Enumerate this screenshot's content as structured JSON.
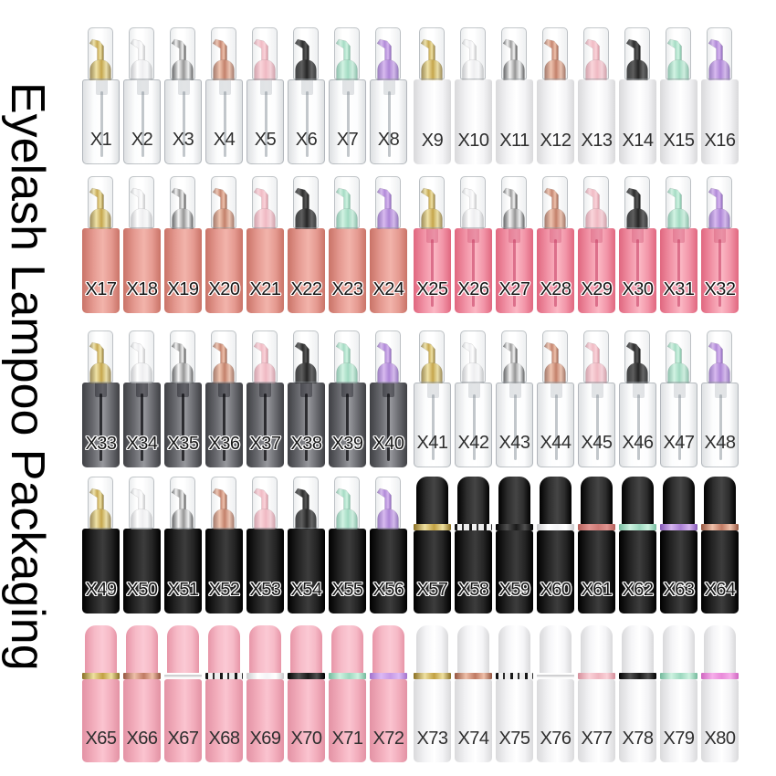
{
  "title": "Eyelash Lampoo Packaging",
  "background": "#ffffff",
  "palette": {
    "colors": {
      "gold": [
        "#8a6f24",
        "#eee0a0",
        "#c2a143"
      ],
      "white": [
        "#c6c6c8",
        "#ffffff",
        "#ededef"
      ],
      "chrome": [
        "#3a3a3a",
        "#f5f5f5",
        "#8f8f8f"
      ],
      "rosegold": [
        "#94553f",
        "#eebfa9",
        "#c07a63"
      ],
      "pink": [
        "#d48e9b",
        "#fad1d8",
        "#efb5bf"
      ],
      "black": [
        "#000000",
        "#4f4f4f",
        "#1a1a1a"
      ],
      "mint": [
        "#74b99c",
        "#cdf2e0",
        "#9dd8bf"
      ],
      "purple": [
        "#8257b5",
        "#d4b3ee",
        "#a97fd4"
      ],
      "coral": [
        "#b45f5a",
        "#e09490",
        "#cd7a76"
      ],
      "whitering": [
        "#c9c9cb",
        "#ffffff",
        "#f4f4f6"
      ],
      "lavender": [
        "#a272cc",
        "#dcb9f4",
        "#c79ae6"
      ],
      "orchid": [
        "#cf66c0",
        "#f6aeea",
        "#e98ada"
      ]
    },
    "caps": {
      "blackcap": [
        "#000000",
        "#2e2e2e",
        "#454545"
      ],
      "pinkcap": [
        "#e795a7",
        "#f6bac7",
        "#fbc9d4"
      ],
      "whitecap": [
        "#d9d9db",
        "#f5f5f7",
        "#ffffff"
      ]
    },
    "bodies": {
      "clear": {
        "stops": [
          "rgba(145,153,160,0.30)",
          "rgba(235,240,243,0.15)",
          "rgba(255,255,255,0.04)"
        ],
        "border": "rgba(140,148,155,0.55)",
        "labelStyle": "plain",
        "neck": "rgba(150,158,166,0.28)",
        "tube": "rgba(120,130,140,0.45)"
      },
      "white": {
        "stops": [
          "#d9d9db",
          "#f3f3f5",
          "#ffffff"
        ],
        "labelStyle": "plain"
      },
      "salmon": {
        "stops": [
          "#c97367",
          "#e59a91",
          "#f2b4ab"
        ],
        "labelStyle": "outline"
      },
      "pinkclear": {
        "stops": [
          "#e0677f",
          "#f295a8",
          "#fbb7c4"
        ],
        "labelStyle": "outline",
        "neck": "rgba(196,58,96,0.30)",
        "tube": "rgba(196,58,96,0.55)"
      },
      "smoke": {
        "stops": [
          "#3f4044",
          "#6a6b70",
          "#97989d"
        ],
        "labelStyle": "outline",
        "neck": "rgba(18,18,24,0.40)",
        "tube": "rgba(12,12,16,0.75)"
      },
      "black": {
        "stops": [
          "#000000",
          "#242424",
          "#3d3d3d"
        ],
        "labelStyle": "outline"
      },
      "pinkopaque": {
        "stops": [
          "#e392a4",
          "#f2adbc",
          "#fbc4d0"
        ],
        "labelStyle": "plain"
      },
      "whiteopaque": {
        "stops": [
          "#dadadc",
          "#f3f3f5",
          "#ffffff"
        ],
        "labelStyle": "plain"
      }
    }
  },
  "rows": [
    {
      "bottles": [
        {
          "label": "X1",
          "body": "clear",
          "pump": "gold"
        },
        {
          "label": "X2",
          "body": "clear",
          "pump": "white"
        },
        {
          "label": "X3",
          "body": "clear",
          "pump": "chrome"
        },
        {
          "label": "X4",
          "body": "clear",
          "pump": "rosegold"
        },
        {
          "label": "X5",
          "body": "clear",
          "pump": "pink"
        },
        {
          "label": "X6",
          "body": "clear",
          "pump": "black"
        },
        {
          "label": "X7",
          "body": "clear",
          "pump": "mint"
        },
        {
          "label": "X8",
          "body": "clear",
          "pump": "purple"
        },
        {
          "label": "X9",
          "body": "white",
          "pump": "gold"
        },
        {
          "label": "X10",
          "body": "white",
          "pump": "white"
        },
        {
          "label": "X11",
          "body": "white",
          "pump": "chrome"
        },
        {
          "label": "X12",
          "body": "white",
          "pump": "rosegold"
        },
        {
          "label": "X13",
          "body": "white",
          "pump": "pink"
        },
        {
          "label": "X14",
          "body": "white",
          "pump": "black"
        },
        {
          "label": "X15",
          "body": "white",
          "pump": "mint"
        },
        {
          "label": "X16",
          "body": "white",
          "pump": "purple"
        }
      ]
    },
    {
      "bottles": [
        {
          "label": "X17",
          "body": "salmon",
          "pump": "gold"
        },
        {
          "label": "X18",
          "body": "salmon",
          "pump": "white"
        },
        {
          "label": "X19",
          "body": "salmon",
          "pump": "chrome"
        },
        {
          "label": "X20",
          "body": "salmon",
          "pump": "rosegold"
        },
        {
          "label": "X21",
          "body": "salmon",
          "pump": "pink"
        },
        {
          "label": "X22",
          "body": "salmon",
          "pump": "black"
        },
        {
          "label": "X23",
          "body": "salmon",
          "pump": "mint"
        },
        {
          "label": "X24",
          "body": "salmon",
          "pump": "purple"
        },
        {
          "label": "X25",
          "body": "pinkclear",
          "pump": "gold"
        },
        {
          "label": "X26",
          "body": "pinkclear",
          "pump": "white"
        },
        {
          "label": "X27",
          "body": "pinkclear",
          "pump": "chrome"
        },
        {
          "label": "X28",
          "body": "pinkclear",
          "pump": "rosegold"
        },
        {
          "label": "X29",
          "body": "pinkclear",
          "pump": "pink"
        },
        {
          "label": "X30",
          "body": "pinkclear",
          "pump": "black"
        },
        {
          "label": "X31",
          "body": "pinkclear",
          "pump": "mint"
        },
        {
          "label": "X32",
          "body": "pinkclear",
          "pump": "purple"
        }
      ]
    },
    {
      "bottles": [
        {
          "label": "X33",
          "body": "smoke",
          "pump": "gold"
        },
        {
          "label": "X34",
          "body": "smoke",
          "pump": "white"
        },
        {
          "label": "X35",
          "body": "smoke",
          "pump": "chrome"
        },
        {
          "label": "X36",
          "body": "smoke",
          "pump": "rosegold"
        },
        {
          "label": "X37",
          "body": "smoke",
          "pump": "pink"
        },
        {
          "label": "X38",
          "body": "smoke",
          "pump": "black"
        },
        {
          "label": "X39",
          "body": "smoke",
          "pump": "mint"
        },
        {
          "label": "X40",
          "body": "smoke",
          "pump": "purple"
        },
        {
          "label": "X41",
          "body": "clear",
          "pump": "gold"
        },
        {
          "label": "X42",
          "body": "clear",
          "pump": "white"
        },
        {
          "label": "X43",
          "body": "clear",
          "pump": "chrome"
        },
        {
          "label": "X44",
          "body": "clear",
          "pump": "rosegold"
        },
        {
          "label": "X45",
          "body": "clear",
          "pump": "pink"
        },
        {
          "label": "X46",
          "body": "clear",
          "pump": "black"
        },
        {
          "label": "X47",
          "body": "clear",
          "pump": "mint"
        },
        {
          "label": "X48",
          "body": "clear",
          "pump": "purple"
        }
      ]
    },
    {
      "bottles": [
        {
          "label": "X49",
          "body": "black",
          "pump": "gold"
        },
        {
          "label": "X50",
          "body": "black",
          "pump": "white"
        },
        {
          "label": "X51",
          "body": "black",
          "pump": "chrome"
        },
        {
          "label": "X52",
          "body": "black",
          "pump": "rosegold"
        },
        {
          "label": "X53",
          "body": "black",
          "pump": "pink"
        },
        {
          "label": "X54",
          "body": "black",
          "pump": "black"
        },
        {
          "label": "X55",
          "body": "black",
          "pump": "mint"
        },
        {
          "label": "X56",
          "body": "black",
          "pump": "purple"
        },
        {
          "label": "X57",
          "body": "black",
          "cap": "blackcap",
          "ring": "gold"
        },
        {
          "label": "X58",
          "body": "black",
          "cap": "blackcap",
          "ring": "chrome"
        },
        {
          "label": "X59",
          "body": "black",
          "cap": "blackcap",
          "ring": "black"
        },
        {
          "label": "X60",
          "body": "black",
          "cap": "blackcap",
          "ring": "whitering"
        },
        {
          "label": "X61",
          "body": "black",
          "cap": "blackcap",
          "ring": "coral"
        },
        {
          "label": "X62",
          "body": "black",
          "cap": "blackcap",
          "ring": "mint"
        },
        {
          "label": "X63",
          "body": "black",
          "cap": "blackcap",
          "ring": "purple"
        },
        {
          "label": "X64",
          "body": "black",
          "cap": "blackcap",
          "ring": "rosegold"
        }
      ]
    },
    {
      "bottles": [
        {
          "label": "X65",
          "body": "pinkopaque",
          "cap": "pinkcap",
          "ring": "gold"
        },
        {
          "label": "X66",
          "body": "pinkopaque",
          "cap": "pinkcap",
          "ring": "rosegold"
        },
        {
          "label": "X67",
          "body": "pinkopaque",
          "cap": "pinkcap",
          "ring": "silverthin"
        },
        {
          "label": "X68",
          "body": "pinkopaque",
          "cap": "pinkcap",
          "ring": "chrome"
        },
        {
          "label": "X69",
          "body": "pinkopaque",
          "cap": "pinkcap",
          "ring": "whitering"
        },
        {
          "label": "X70",
          "body": "pinkopaque",
          "cap": "pinkcap",
          "ring": "black"
        },
        {
          "label": "X71",
          "body": "pinkopaque",
          "cap": "pinkcap",
          "ring": "mint"
        },
        {
          "label": "X72",
          "body": "pinkopaque",
          "cap": "pinkcap",
          "ring": "lavender"
        },
        {
          "label": "X73",
          "body": "whiteopaque",
          "cap": "whitecap",
          "ring": "gold"
        },
        {
          "label": "X74",
          "body": "whiteopaque",
          "cap": "whitecap",
          "ring": "rosegold"
        },
        {
          "label": "X75",
          "body": "whiteopaque",
          "cap": "whitecap",
          "ring": "chrome"
        },
        {
          "label": "X76",
          "body": "whiteopaque",
          "cap": "whitecap",
          "ring": "silverthin"
        },
        {
          "label": "X77",
          "body": "whiteopaque",
          "cap": "whitecap",
          "ring": "pink"
        },
        {
          "label": "X78",
          "body": "whiteopaque",
          "cap": "whitecap",
          "ring": "black"
        },
        {
          "label": "X79",
          "body": "whiteopaque",
          "cap": "whitecap",
          "ring": "mint"
        },
        {
          "label": "X80",
          "body": "whiteopaque",
          "cap": "whitecap",
          "ring": "orchid"
        }
      ]
    }
  ]
}
